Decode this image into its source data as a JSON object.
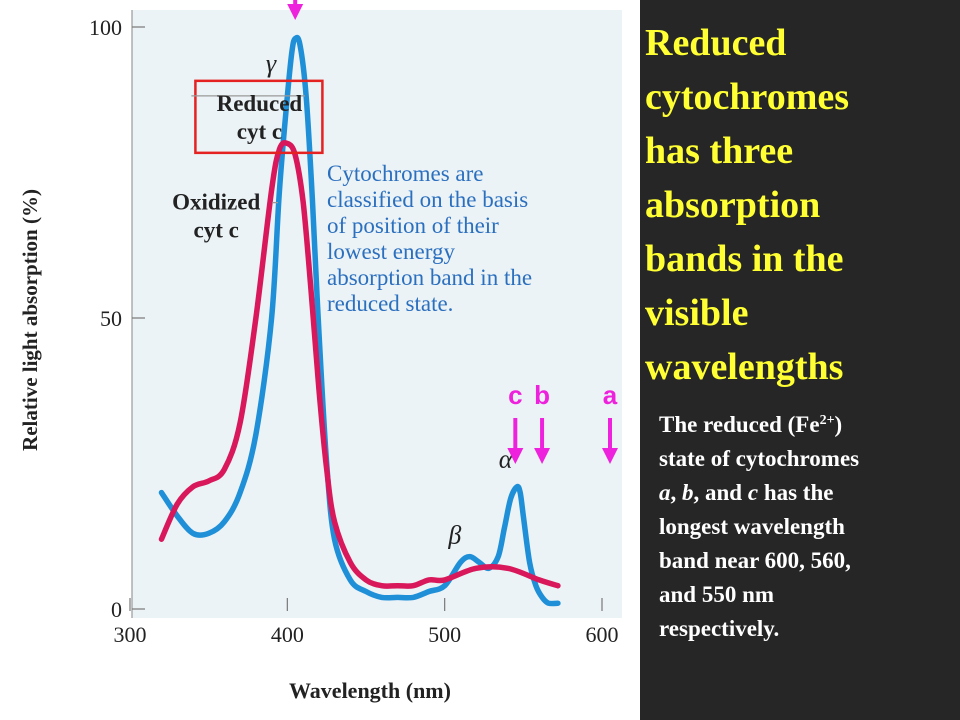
{
  "chart_data": {
    "type": "line",
    "xlabel": "Wavelength (nm)",
    "ylabel": "Relative light absorption (%)",
    "xlim": [
      300,
      600
    ],
    "ylim": [
      0,
      100
    ],
    "x_ticks": [
      "300",
      "400",
      "500",
      "600"
    ],
    "y_ticks": [
      "0",
      "50",
      "100"
    ],
    "grid": false,
    "series": [
      {
        "name": "Reduced cyt c",
        "color": "#1f8fd8",
        "x": [
          320,
          330,
          340,
          350,
          360,
          370,
          380,
          390,
          395,
          400,
          403,
          405,
          408,
          412,
          416,
          420,
          425,
          430,
          440,
          450,
          460,
          470,
          480,
          490,
          500,
          510,
          516,
          522,
          528,
          534,
          538,
          542,
          546,
          548,
          550,
          554,
          558,
          562,
          566,
          572
        ],
        "y": [
          20,
          16,
          13,
          13,
          15,
          20,
          30,
          50,
          72,
          88,
          96,
          98,
          97,
          88,
          70,
          48,
          25,
          12,
          5,
          3,
          2,
          2,
          2,
          3,
          4,
          8,
          9,
          8,
          7,
          9,
          14,
          19,
          21,
          20,
          16,
          8,
          4,
          2,
          1,
          1
        ]
      },
      {
        "name": "Oxidized cyt c",
        "color": "#d8185a",
        "x": [
          320,
          330,
          340,
          350,
          360,
          370,
          380,
          390,
          395,
          400,
          405,
          410,
          415,
          420,
          425,
          430,
          440,
          450,
          460,
          470,
          480,
          490,
          500,
          520,
          540,
          560,
          572
        ],
        "y": [
          12,
          18,
          21,
          22,
          24,
          32,
          50,
          72,
          79,
          80,
          78,
          70,
          55,
          38,
          24,
          15,
          8,
          5,
          4,
          4,
          4,
          5,
          5,
          7,
          7,
          5,
          4
        ]
      }
    ],
    "annotations": [
      {
        "text": "γ",
        "x": 394,
        "y": 94
      },
      {
        "text": "β",
        "x": 510,
        "y": 13
      },
      {
        "text": "α",
        "x": 542,
        "y": 26
      },
      {
        "text": "Reduced",
        "x": 360,
        "y": 88
      },
      {
        "text": "cyt c",
        "x": 360,
        "y": 82
      },
      {
        "text": "Oxidized",
        "x": 323,
        "y": 70
      },
      {
        "text": "cyt c",
        "x": 323,
        "y": 64
      }
    ],
    "band_markers": [
      {
        "label": "c",
        "x": 550,
        "color": "#ee22dd"
      },
      {
        "label": "b",
        "x": 560,
        "color": "#ee22dd"
      },
      {
        "label": "a",
        "x": 600,
        "color": "#ee22dd"
      }
    ],
    "highlight_color": "#e52222",
    "gamma_marker_x": 405
  },
  "note": {
    "lines": [
      "Cytochromes are",
      "classified on the basis",
      "of position of their",
      "lowest energy",
      "absorption band in the",
      "reduced state."
    ]
  },
  "heading": {
    "lines": [
      "Reduced",
      "cytochromes",
      "has three",
      "absorption",
      "bands in the",
      "visible",
      "wavelengths"
    ]
  },
  "description": {
    "line1_pre": "The reduced (Fe",
    "line1_sup": "2+",
    "line1_post": ")",
    "line2": "state of cytochromes",
    "line3_a": "a",
    "line3_sep1": ", ",
    "line3_b": "b",
    "line3_sep2": ", and ",
    "line3_c": "c",
    "line3_post": " has the",
    "line4": "longest wavelength",
    "line5": "band near 600, 560,",
    "line6": "and 550 nm",
    "line7": "respectively."
  }
}
